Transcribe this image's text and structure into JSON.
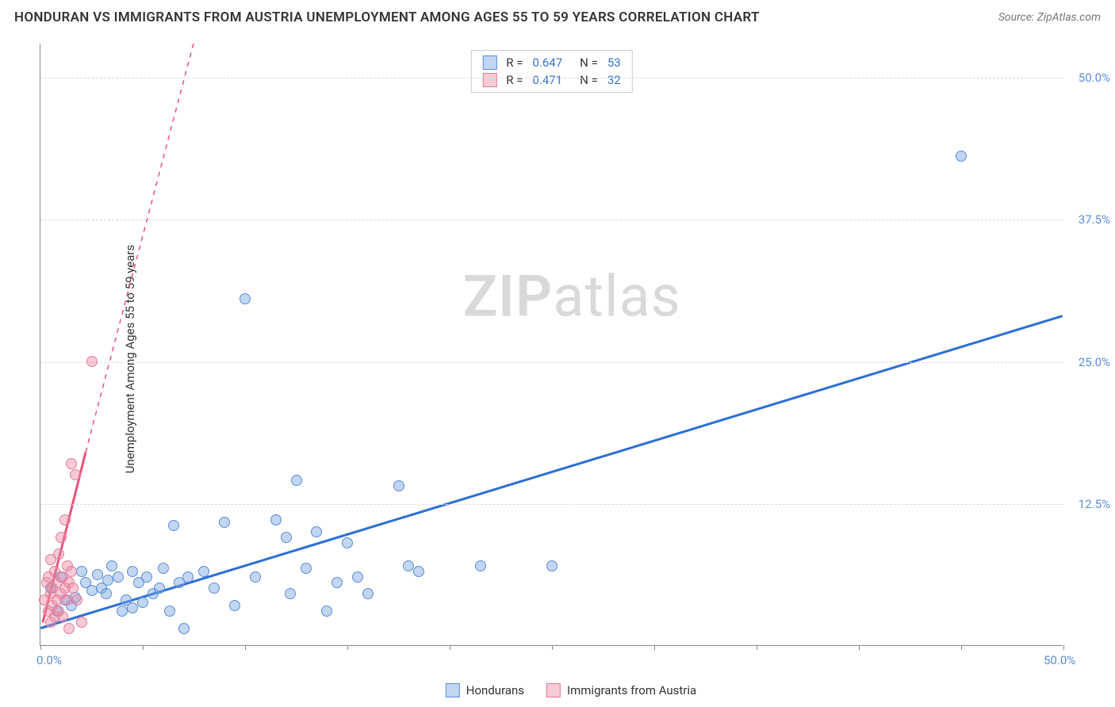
{
  "title": "HONDURAN VS IMMIGRANTS FROM AUSTRIA UNEMPLOYMENT AMONG AGES 55 TO 59 YEARS CORRELATION CHART",
  "source": "Source: ZipAtlas.com",
  "y_axis_label": "Unemployment Among Ages 55 to 59 years",
  "watermark": {
    "bold": "ZIP",
    "light": "atlas"
  },
  "chart": {
    "type": "scatter",
    "xlim": [
      0,
      50
    ],
    "ylim": [
      0,
      53
    ],
    "x_ticks": [
      0,
      5,
      10,
      15,
      20,
      25,
      30,
      35,
      40,
      45,
      50
    ],
    "x_tick_labels": {
      "0": "0.0%",
      "50": "50.0%"
    },
    "y_ticks": [
      12.5,
      25.0,
      37.5,
      50.0
    ],
    "y_tick_labels": [
      "12.5%",
      "25.0%",
      "37.5%",
      "50.0%"
    ],
    "grid_color": "#dddddd",
    "background_color": "#ffffff",
    "axis_color": "#888888",
    "tick_label_color": "#5b8dd6",
    "series": [
      {
        "name": "Hondurans",
        "color_fill": "rgba(120,165,225,0.45)",
        "color_stroke": "#5b8dd6",
        "trend_color": "#2a6fd6",
        "trend_width": 3,
        "trend_style": "solid",
        "trend_start": [
          0,
          1.5
        ],
        "trend_end_solid": [
          50,
          29
        ],
        "stats": {
          "R": "0.647",
          "N": "53"
        },
        "points": [
          [
            0.5,
            5
          ],
          [
            0.8,
            3
          ],
          [
            1.0,
            6
          ],
          [
            1.2,
            4
          ],
          [
            1.5,
            3.5
          ],
          [
            1.7,
            4.2
          ],
          [
            2.0,
            6.5
          ],
          [
            2.2,
            5.5
          ],
          [
            2.5,
            4.8
          ],
          [
            2.8,
            6.2
          ],
          [
            3.0,
            5.0
          ],
          [
            3.2,
            4.5
          ],
          [
            3.5,
            7.0
          ],
          [
            3.8,
            6.0
          ],
          [
            4.0,
            3.0
          ],
          [
            4.2,
            4.0
          ],
          [
            4.5,
            6.5
          ],
          [
            4.8,
            5.5
          ],
          [
            5.0,
            3.8
          ],
          [
            5.2,
            6.0
          ],
          [
            5.5,
            4.5
          ],
          [
            5.8,
            5.0
          ],
          [
            6.0,
            6.8
          ],
          [
            6.3,
            3.0
          ],
          [
            6.5,
            10.5
          ],
          [
            6.8,
            5.5
          ],
          [
            7.0,
            1.5
          ],
          [
            7.2,
            6.0
          ],
          [
            8.0,
            6.5
          ],
          [
            8.5,
            5.0
          ],
          [
            9.0,
            10.8
          ],
          [
            9.5,
            3.5
          ],
          [
            10.0,
            30.5
          ],
          [
            10.5,
            6.0
          ],
          [
            11.5,
            11.0
          ],
          [
            12.0,
            9.5
          ],
          [
            12.2,
            4.5
          ],
          [
            12.5,
            14.5
          ],
          [
            13.0,
            6.8
          ],
          [
            13.5,
            10.0
          ],
          [
            14.0,
            3.0
          ],
          [
            14.5,
            5.5
          ],
          [
            15.0,
            9.0
          ],
          [
            15.5,
            6.0
          ],
          [
            16.0,
            4.5
          ],
          [
            17.5,
            14.0
          ],
          [
            18.0,
            7.0
          ],
          [
            18.5,
            6.5
          ],
          [
            21.5,
            7.0
          ],
          [
            25.0,
            7.0
          ],
          [
            45.0,
            43.0
          ],
          [
            4.5,
            3.3
          ],
          [
            3.3,
            5.7
          ]
        ]
      },
      {
        "name": "Immigrants from Austria",
        "color_fill": "rgba(235,140,165,0.45)",
        "color_stroke": "#e57a9a",
        "trend_color": "#e8537d",
        "trend_width": 3,
        "trend_style_solid_to": [
          2.2,
          17
        ],
        "trend_start": [
          0.1,
          2
        ],
        "trend_end_dashed": [
          8.5,
          60
        ],
        "stats": {
          "R": "0.471",
          "N": "32"
        },
        "points": [
          [
            0.2,
            4
          ],
          [
            0.3,
            5.5
          ],
          [
            0.4,
            3
          ],
          [
            0.4,
            6
          ],
          [
            0.5,
            2
          ],
          [
            0.5,
            4.5
          ],
          [
            0.5,
            7.5
          ],
          [
            0.6,
            3.5
          ],
          [
            0.6,
            5
          ],
          [
            0.7,
            2.5
          ],
          [
            0.7,
            6.5
          ],
          [
            0.8,
            4
          ],
          [
            0.8,
            5.5
          ],
          [
            0.9,
            3
          ],
          [
            0.9,
            8
          ],
          [
            1.0,
            4.5
          ],
          [
            1.0,
            9.5
          ],
          [
            1.1,
            2.5
          ],
          [
            1.1,
            6
          ],
          [
            1.2,
            5
          ],
          [
            1.2,
            11
          ],
          [
            1.3,
            4
          ],
          [
            1.3,
            7
          ],
          [
            1.4,
            5.5
          ],
          [
            1.4,
            1.5
          ],
          [
            1.5,
            6.5
          ],
          [
            1.5,
            16
          ],
          [
            1.6,
            5
          ],
          [
            1.7,
            15
          ],
          [
            1.8,
            4
          ],
          [
            2.5,
            25
          ],
          [
            2.0,
            2
          ]
        ]
      }
    ],
    "legend": [
      {
        "label": "Hondurans",
        "fill": "rgba(120,165,225,0.45)",
        "stroke": "#5b8dd6"
      },
      {
        "label": "Immigrants from Austria",
        "fill": "rgba(235,140,165,0.45)",
        "stroke": "#e57a9a"
      }
    ],
    "stats_box": {
      "label_R": "R =",
      "label_N": "N ="
    }
  }
}
